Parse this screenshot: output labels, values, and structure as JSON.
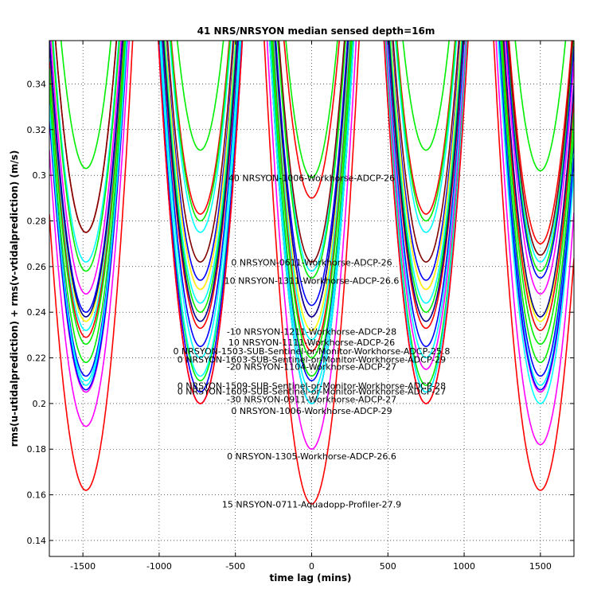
{
  "chart_data": {
    "type": "line",
    "title": "41 NRS/NRSYON median sensed depth=16m",
    "xlabel": "time lag (mins)",
    "ylabel": "rms(u-utidalprediction) + rms(v-vtidalprediction) (m/s)",
    "xlim": [
      -1720,
      1720
    ],
    "ylim": [
      0.133,
      0.359
    ],
    "x_ticks": [
      -1500,
      -1000,
      -500,
      0,
      500,
      1000,
      1500
    ],
    "x_tick_labels": [
      "-1500",
      "-1000",
      "-500",
      "0",
      "500",
      "1000",
      "1500"
    ],
    "y_ticks": [
      0.14,
      0.16,
      0.18,
      0.2,
      0.22,
      0.24,
      0.26,
      0.28,
      0.3,
      0.32,
      0.34
    ],
    "y_tick_labels": [
      "0.14",
      "0.16",
      "0.18",
      "0.2",
      "0.22",
      "0.24",
      "0.26",
      "0.28",
      "0.3",
      "0.32",
      "0.34"
    ],
    "grid": true,
    "dip_centers": [
      -1480,
      -730,
      0,
      750,
      1500
    ],
    "series": [
      {
        "color": "#00ee00",
        "minima": [
          0.303,
          0.311,
          0.299,
          0.311,
          0.302
        ]
      },
      {
        "color": "#ff0000",
        "minima": [
          0.275,
          0.283,
          0.29,
          0.283,
          0.27
        ]
      },
      {
        "color": "#00ffff",
        "minima": [
          0.262,
          0.275,
          0.258,
          0.275,
          0.262
        ]
      },
      {
        "color": "#00ee00",
        "minima": [
          0.258,
          0.28,
          0.255,
          0.28,
          0.258
        ]
      },
      {
        "color": "#800000",
        "minima": [
          0.275,
          0.262,
          0.262,
          0.262,
          0.265
        ]
      },
      {
        "color": "#0000ff",
        "minima": [
          0.24,
          0.254,
          0.243,
          0.254,
          0.255
        ]
      },
      {
        "color": "#ff00ff",
        "minima": [
          0.248,
          0.25,
          0.238,
          0.25,
          0.248
        ]
      },
      {
        "color": "#ffff00",
        "minima": [
          0.236,
          0.25,
          0.232,
          0.25,
          0.236
        ]
      },
      {
        "color": "#00ffff",
        "minima": [
          0.232,
          0.244,
          0.228,
          0.244,
          0.232
        ]
      },
      {
        "color": "#ff0000",
        "minima": [
          0.229,
          0.233,
          0.223,
          0.233,
          0.232
        ]
      },
      {
        "color": "#00ee00",
        "minima": [
          0.226,
          0.24,
          0.22,
          0.24,
          0.226
        ]
      },
      {
        "color": "#00008b",
        "minima": [
          0.238,
          0.236,
          0.238,
          0.236,
          0.238
        ]
      },
      {
        "color": "#0000ff",
        "minima": [
          0.212,
          0.225,
          0.21,
          0.225,
          0.212
        ]
      },
      {
        "color": "#00ffff",
        "minima": [
          0.208,
          0.22,
          0.205,
          0.22,
          0.208
        ]
      },
      {
        "color": "#ff00ff",
        "minima": [
          0.205,
          0.2,
          0.2,
          0.215,
          0.205
        ]
      },
      {
        "color": "#00ee00",
        "minima": [
          0.218,
          0.21,
          0.212,
          0.208,
          0.218
        ]
      },
      {
        "color": "#0000ff",
        "minima": [
          0.206,
          0.205,
          0.2,
          0.205,
          0.206
        ]
      },
      {
        "color": "#00ffff",
        "minima": [
          0.21,
          0.212,
          0.2,
          0.205,
          0.2
        ]
      },
      {
        "color": "#ff00ff",
        "minima": [
          0.19,
          0.2,
          0.18,
          0.2,
          0.182
        ]
      },
      {
        "color": "#ff0000",
        "minima": [
          0.162,
          0.2,
          0.156,
          0.2,
          0.162
        ]
      }
    ],
    "annotations": [
      {
        "text": "40 NRSYON-1006-Workhorse-ADCP-26",
        "x": 0,
        "y": 0.2975
      },
      {
        "text": "0 NRSYON-0611-Workhorse-ADCP-26",
        "x": 0,
        "y": 0.2605
      },
      {
        "text": "10 NRSYON-1311-Workhorse-ADCP-26.6",
        "x": 0,
        "y": 0.2525
      },
      {
        "text": "-10 NRSYON-1211-Workhorse-ADCP-28",
        "x": 0,
        "y": 0.2302
      },
      {
        "text": "10 NRSYON-1111-Workhorse-ADCP-26",
        "x": 0,
        "y": 0.2255
      },
      {
        "text": "0 NRSYON-1503-SUB-Sentinel-or-Monitor-Workhorse-ADCP-25.8",
        "x": 0,
        "y": 0.2215
      },
      {
        "text": "0 NRSYON-1603-SUB-Sentinel-or-Monitor-Workhorse-ADCP-29",
        "x": 0,
        "y": 0.218
      },
      {
        "text": "-20 NRSYON-1104-Workhorse-ADCP-27",
        "x": 0,
        "y": 0.2148
      },
      {
        "text": "0 NRSYON-1509-SUB-Sentinel-or-Monitor-Workhorse-ADCP-28",
        "x": 0,
        "y": 0.2065
      },
      {
        "text": "0 NRSYON-1609-SUB-Sentinel-or-Monitor-Workhorse-ADCP-27",
        "x": 0,
        "y": 0.204
      },
      {
        "text": "-30 NRSYON-0911-Workhorse-ADCP-27",
        "x": 0,
        "y": 0.2005
      },
      {
        "text": "0 NRSYON-1006-Workhorse-ADCP-29",
        "x": 0,
        "y": 0.1955
      },
      {
        "text": "0 NRSYON-1305-Workhorse-ADCP-26.6",
        "x": 0,
        "y": 0.1755
      },
      {
        "text": "15 NRSYON-0711-Aquadopp-Profiler-27.9",
        "x": 0,
        "y": 0.1545
      }
    ]
  }
}
